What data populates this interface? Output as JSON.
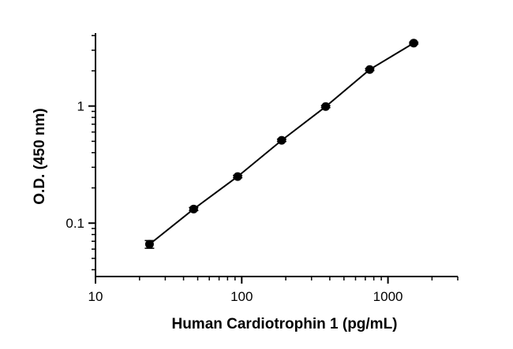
{
  "chart_data": {
    "type": "scatter",
    "title": "",
    "xlabel": "Human Cardiotrophin 1 (pg/mL)",
    "ylabel": "O.D. (450 nm)",
    "xscale": "log",
    "yscale": "log",
    "xlim": [
      10,
      3000
    ],
    "ylim": [
      0.035,
      4.2
    ],
    "x_ticks": [
      10,
      100,
      1000
    ],
    "x_tick_labels": [
      "10",
      "100",
      "1000"
    ],
    "y_ticks": [
      0.1,
      1
    ],
    "y_tick_labels": [
      "0.1",
      "1"
    ],
    "grid": false,
    "legend": "none",
    "series": [
      {
        "x": [
          23.4,
          46.9,
          93.8,
          187.5,
          375,
          750,
          1500
        ],
        "y": [
          0.066,
          0.132,
          0.25,
          0.51,
          0.99,
          2.05,
          3.45
        ],
        "error": [
          0.005,
          0.004,
          0.006,
          0.012,
          0.02,
          0.04,
          0.06
        ],
        "marker": "circle",
        "fit_line": true
      }
    ],
    "colors": {
      "marker": "#000000",
      "line": "#000000",
      "axis": "#000000"
    }
  }
}
